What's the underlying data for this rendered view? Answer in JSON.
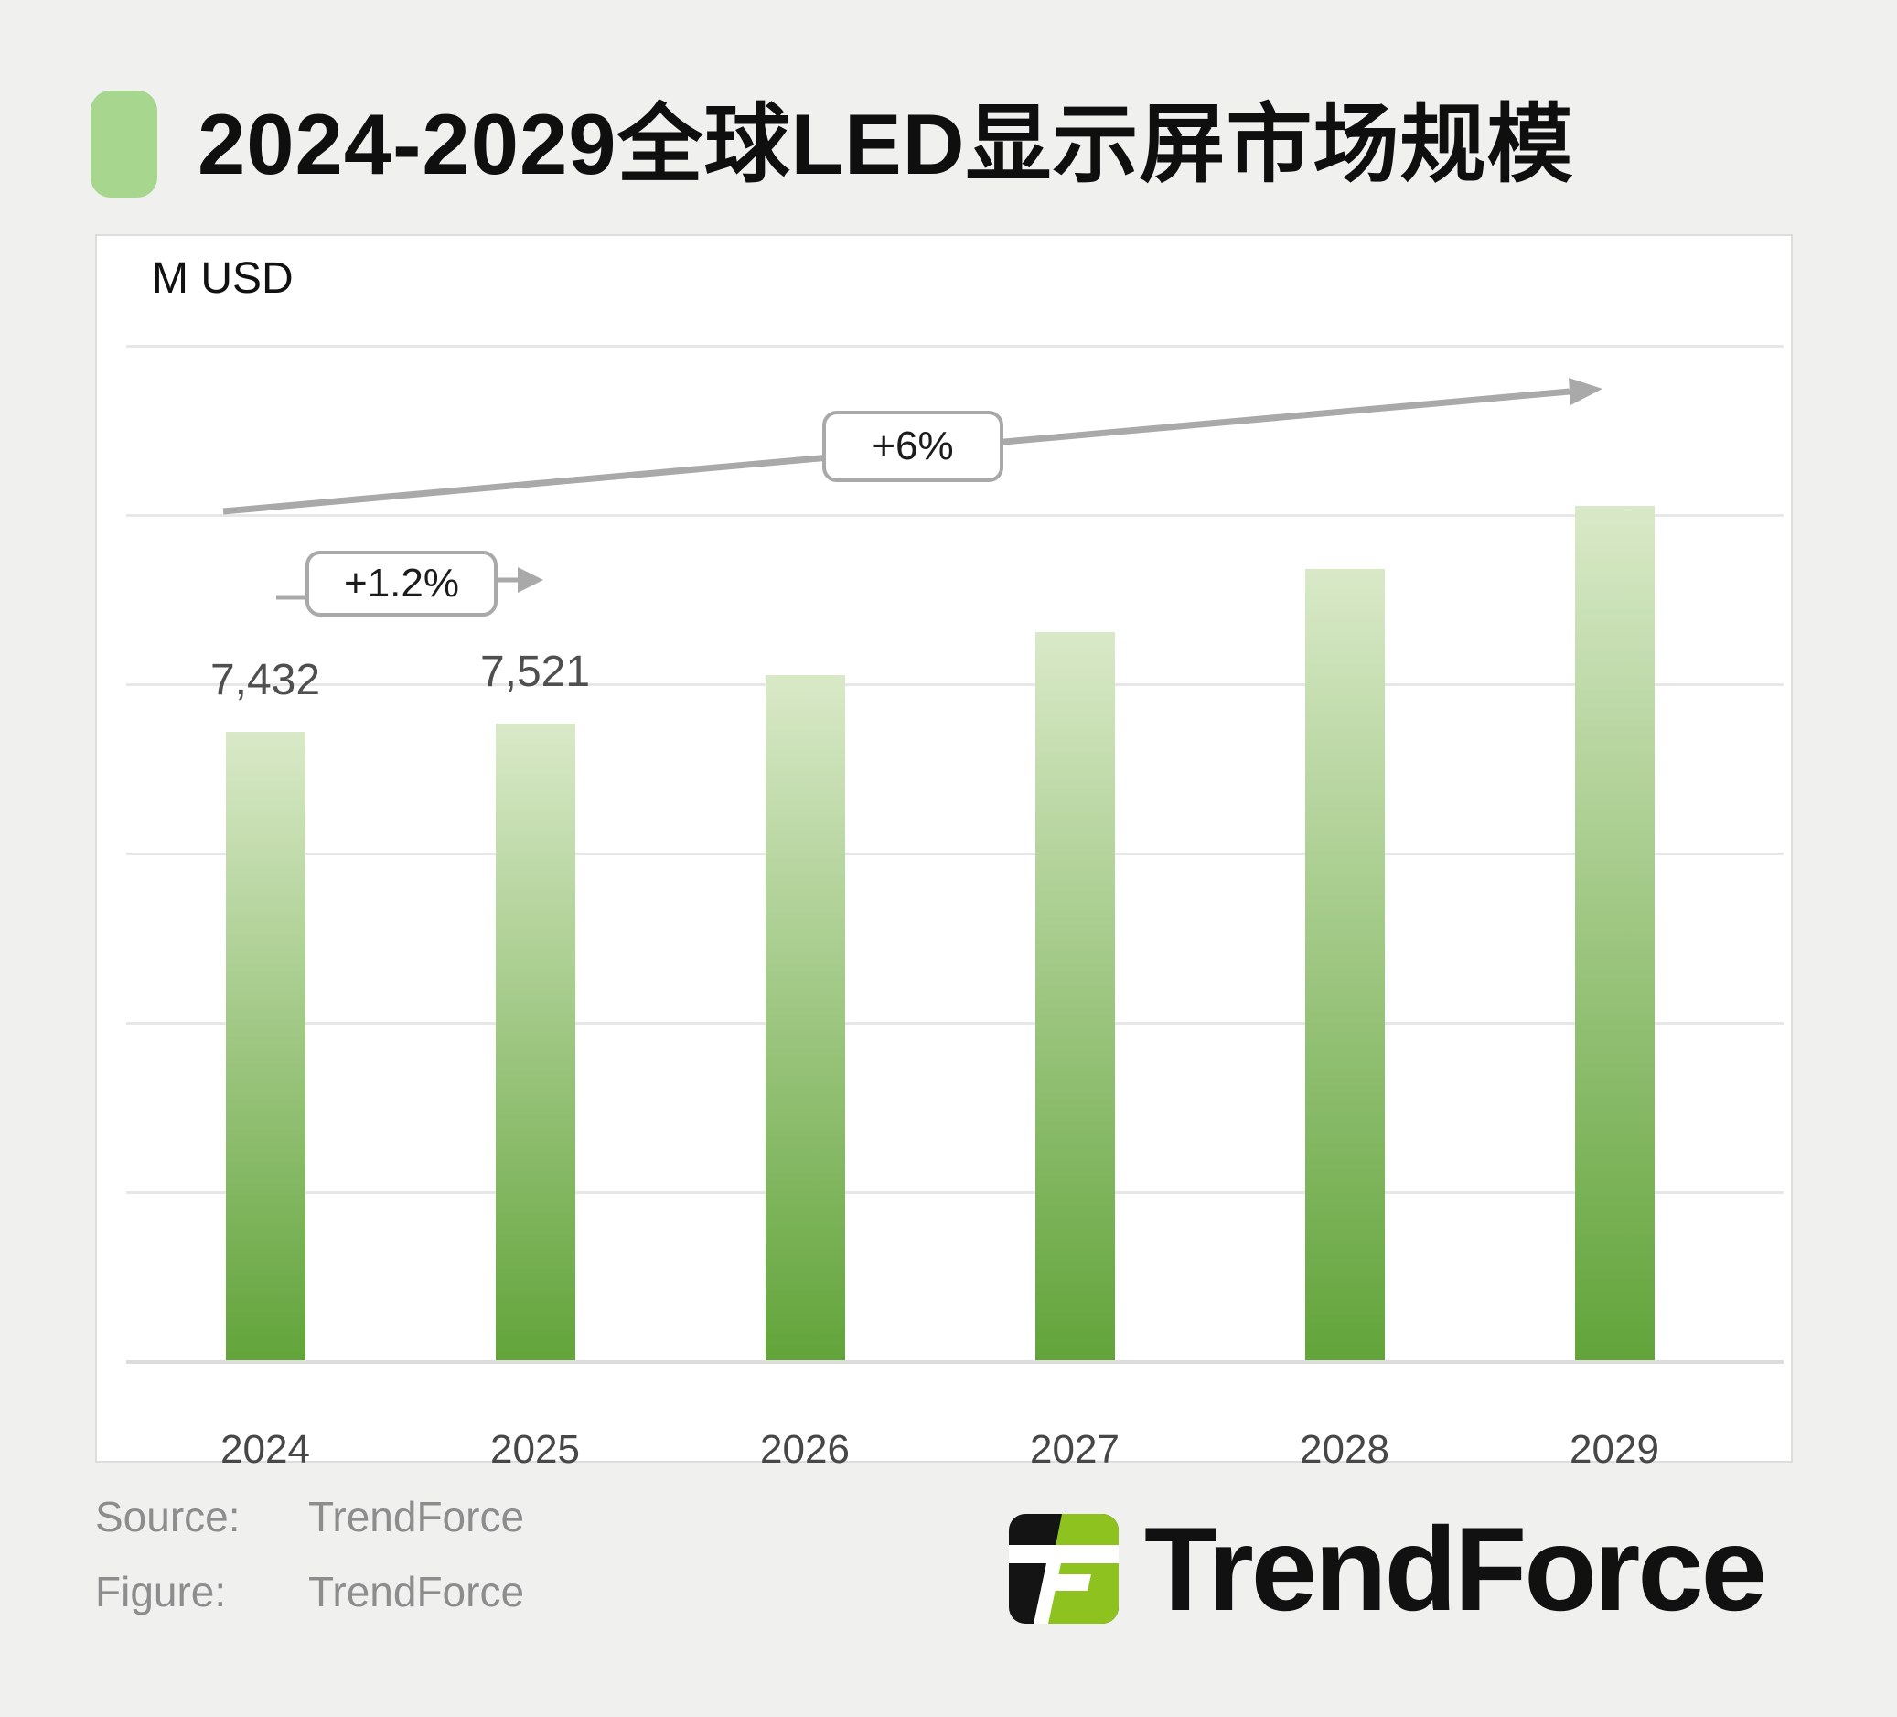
{
  "page": {
    "background": "#f0f0ee"
  },
  "header": {
    "title": "2024-2029全球LED显示屏市场规模",
    "bullet_color": "#a7d68f"
  },
  "chart_data": {
    "type": "bar",
    "title": "2024-2029全球LED显示屏市场规模",
    "unit_label": "M USD",
    "categories": [
      "2024",
      "2025",
      "2026",
      "2027",
      "2028",
      "2029"
    ],
    "values": [
      7432,
      7521,
      8100,
      8600,
      9350,
      10100
    ],
    "value_labels": [
      "7,432",
      "7,521",
      "",
      "",
      "",
      ""
    ],
    "ylim": [
      0,
      12000
    ],
    "grid_step": 2000,
    "grid": true,
    "legend": false,
    "bar_color_top": "#d9e9c8",
    "bar_color_bottom": "#62a43a",
    "annotations": [
      {
        "id": "growth-2024-2025",
        "text": "+1.2%",
        "from": "2024",
        "to": "2025"
      },
      {
        "id": "growth-2024-2029",
        "text": "+6%",
        "from": "2024",
        "to": "2029"
      }
    ],
    "arrow_color": "#a9a9a9"
  },
  "footer": {
    "source_label": "Source:",
    "source_value": "TrendForce",
    "figure_label": "Figure:",
    "figure_value": "TrendForce",
    "logo_text": "TrendForce",
    "logo_green": "#8dc21f",
    "logo_black": "#141414"
  }
}
